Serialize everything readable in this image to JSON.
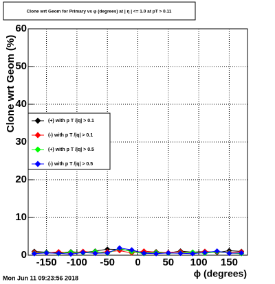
{
  "chart_data": {
    "type": "line",
    "title": "Clone wrt Geom for Primary vs φ (degrees) at | η | <= 1.0 at pT > 0.11",
    "x_label": "ϕ (degrees)",
    "y_label": "Clone wrt Geom (%)",
    "x": [
      -170,
      -150,
      -130,
      -110,
      -90,
      -70,
      -50,
      -30,
      -10,
      10,
      30,
      50,
      70,
      90,
      110,
      130,
      150,
      170
    ],
    "series": [
      {
        "name": "(+) with p T /|q| > 0.1",
        "color": "#000000",
        "values": [
          1.0,
          0.8,
          0.6,
          0.9,
          0.7,
          1.1,
          1.6,
          1.5,
          1.2,
          0.7,
          0.9,
          0.6,
          1.1,
          0.8,
          1.0,
          0.7,
          1.2,
          1.0
        ]
      },
      {
        "name": "(-) with p T /|q| > 0.1",
        "color": "#ff0000",
        "values": [
          0.8,
          0.6,
          0.9,
          0.5,
          1.0,
          0.7,
          0.9,
          1.2,
          0.6,
          1.1,
          0.8,
          0.7,
          0.9,
          0.6,
          1.0,
          0.8,
          0.7,
          0.9
        ]
      },
      {
        "name": "(+) with p T /|q| > 0.5",
        "color": "#00ff00",
        "values": [
          0.5,
          0.7,
          0.4,
          0.8,
          0.6,
          1.0,
          0.5,
          1.8,
          0.9,
          0.4,
          0.7,
          0.5,
          0.6,
          0.8,
          0.5,
          0.9,
          0.6,
          0.4
        ]
      },
      {
        "name": "(-) with p T /|q| > 0.5",
        "color": "#0000ff",
        "values": [
          0.4,
          0.6,
          0.5,
          0.3,
          0.7,
          0.5,
          0.6,
          1.9,
          1.4,
          0.5,
          0.4,
          0.6,
          0.5,
          0.4,
          0.7,
          1.1,
          0.5,
          0.6
        ]
      }
    ],
    "xlim": [
      -180,
      180
    ],
    "xticks": [
      -150,
      -100,
      -50,
      0,
      50,
      100,
      150
    ],
    "ylim": [
      0,
      60
    ],
    "yticks": [
      0,
      10,
      20,
      30,
      40,
      50,
      60
    ],
    "grid": true
  },
  "timestamp": "Mon Jun 11 09:23:56 2018"
}
